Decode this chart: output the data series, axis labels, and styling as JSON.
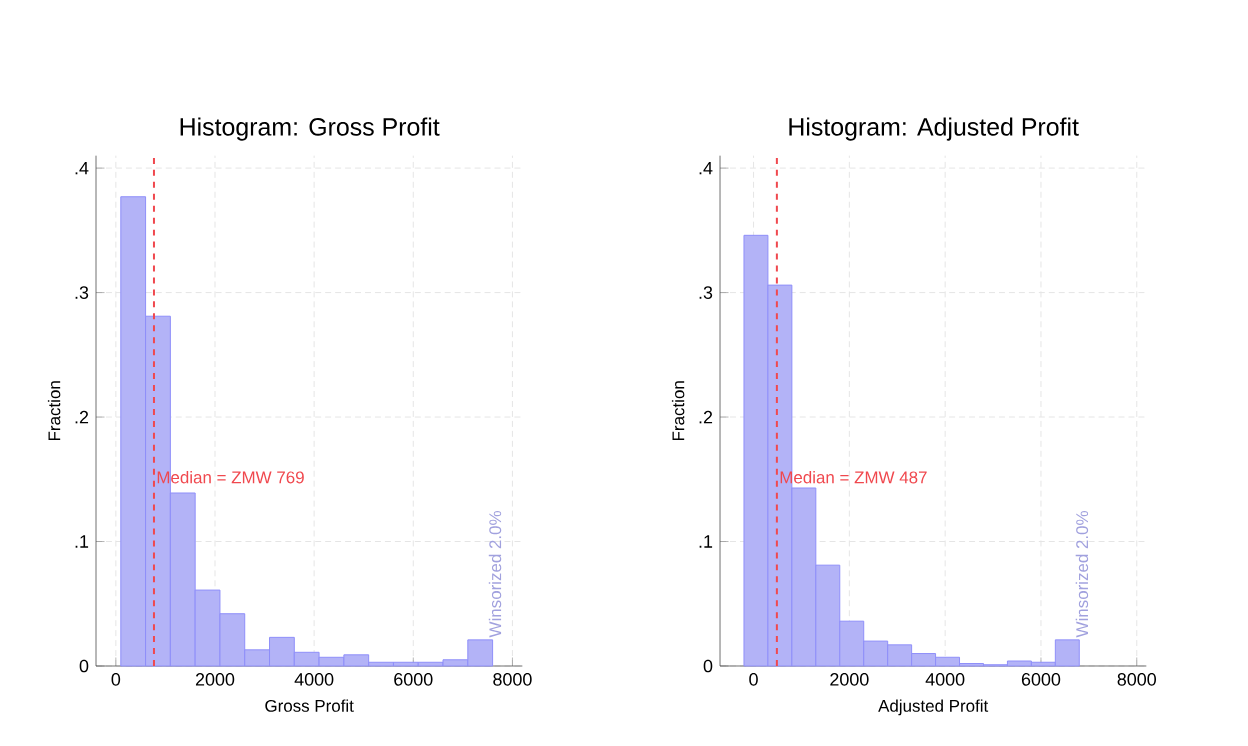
{
  "chart_data": [
    {
      "type": "histogram",
      "title": "Histogram: Gross Profit",
      "xlabel": "Gross Profit",
      "ylabel": "Fraction",
      "bins": [
        100,
        600,
        1100,
        1600,
        2100,
        2600,
        3100,
        3600,
        4100,
        4600,
        5100,
        5600,
        6100,
        6600,
        7100,
        7600
      ],
      "values": [
        0.377,
        0.281,
        0.139,
        0.061,
        0.042,
        0.013,
        0.023,
        0.011,
        0.007,
        0.009,
        0.003,
        0.003,
        0.003,
        0.005,
        0.021
      ],
      "color": "#b3b3f7",
      "xlim": [
        -400,
        8200
      ],
      "ylim": [
        0,
        0.41
      ],
      "xticks": [
        0,
        2000,
        4000,
        6000,
        8000
      ],
      "yticks": [
        0,
        {
          "value": 0.1,
          "label": ".1"
        },
        {
          "value": 0.2,
          "label": ".2"
        },
        {
          "value": 0.3,
          "label": ".3"
        },
        {
          "value": 0.4,
          "label": ".4"
        }
      ],
      "grid": true,
      "ref_lines": [
        {
          "axis": "x",
          "value": 769,
          "label": "Median = ZMW 769",
          "color": "#f0484e",
          "line_style": "dashed"
        }
      ],
      "annotations": [
        "Winsorized 2.0%"
      ]
    },
    {
      "type": "histogram",
      "title": "Histogram: Adjusted Profit",
      "xlabel": "Adjusted Profit",
      "ylabel": "Fraction",
      "bins": [
        -200,
        300,
        800,
        1300,
        1800,
        2300,
        2800,
        3300,
        3800,
        4300,
        4800,
        5300,
        5800,
        6300,
        6800
      ],
      "values": [
        0.346,
        0.306,
        0.143,
        0.081,
        0.036,
        0.02,
        0.017,
        0.01,
        0.007,
        0.002,
        0.001,
        0.004,
        0.003,
        0.021
      ],
      "color": "#b3b3f7",
      "xlim": [
        -700,
        8200
      ],
      "ylim": [
        0,
        0.41
      ],
      "xticks": [
        0,
        2000,
        4000,
        6000,
        8000
      ],
      "yticks": [
        0,
        {
          "value": 0.1,
          "label": ".1"
        },
        {
          "value": 0.2,
          "label": ".2"
        },
        {
          "value": 0.3,
          "label": ".3"
        },
        {
          "value": 0.4,
          "label": ".4"
        }
      ],
      "grid": true,
      "ref_lines": [
        {
          "axis": "x",
          "value": 487,
          "label": "Median = ZMW 487",
          "color": "#f0484e",
          "line_style": "dashed"
        }
      ],
      "annotations": [
        "Winsorized 2.0%"
      ]
    }
  ]
}
